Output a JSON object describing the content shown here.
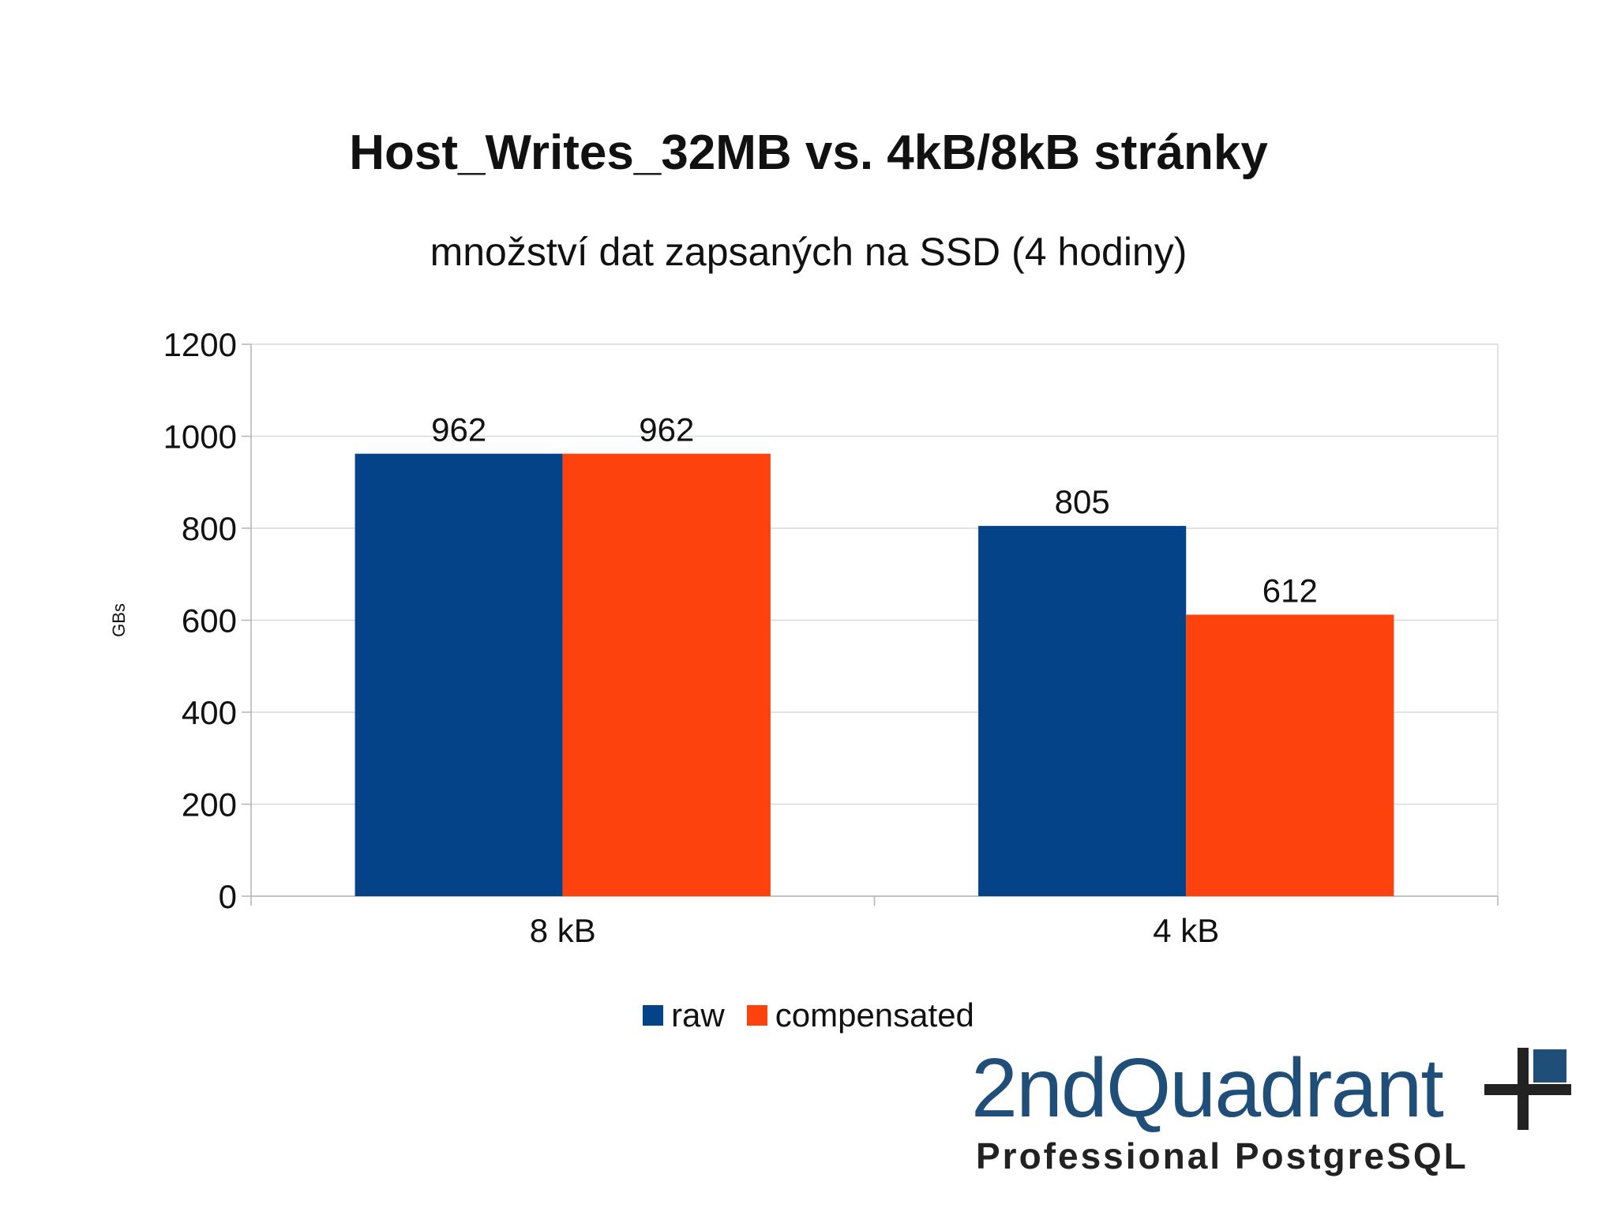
{
  "chart_data": {
    "type": "bar",
    "title": "Host_Writes_32MB vs. 4kB/8kB stránky",
    "subtitle": "množství dat zapsaných na SSD (4 hodiny)",
    "xlabel": "",
    "ylabel": "GBs",
    "categories": [
      "8 kB",
      "4 kB"
    ],
    "series": [
      {
        "name": "raw",
        "values": [
          962,
          805
        ],
        "color": "#044387"
      },
      {
        "name": "compensated",
        "values": [
          962,
          612
        ],
        "color": "#fe420e"
      }
    ],
    "ylim": [
      0,
      1200
    ],
    "yticks": [
      0,
      200,
      400,
      600,
      800,
      1000,
      1200
    ],
    "grid": true,
    "legend_position": "bottom"
  },
  "logo": {
    "name": "2ndQuadrant",
    "tagline": "Professional PostgreSQL",
    "colors": {
      "text": "#1f4e79",
      "accent": "#1f4e79",
      "cross": "#222222"
    }
  }
}
